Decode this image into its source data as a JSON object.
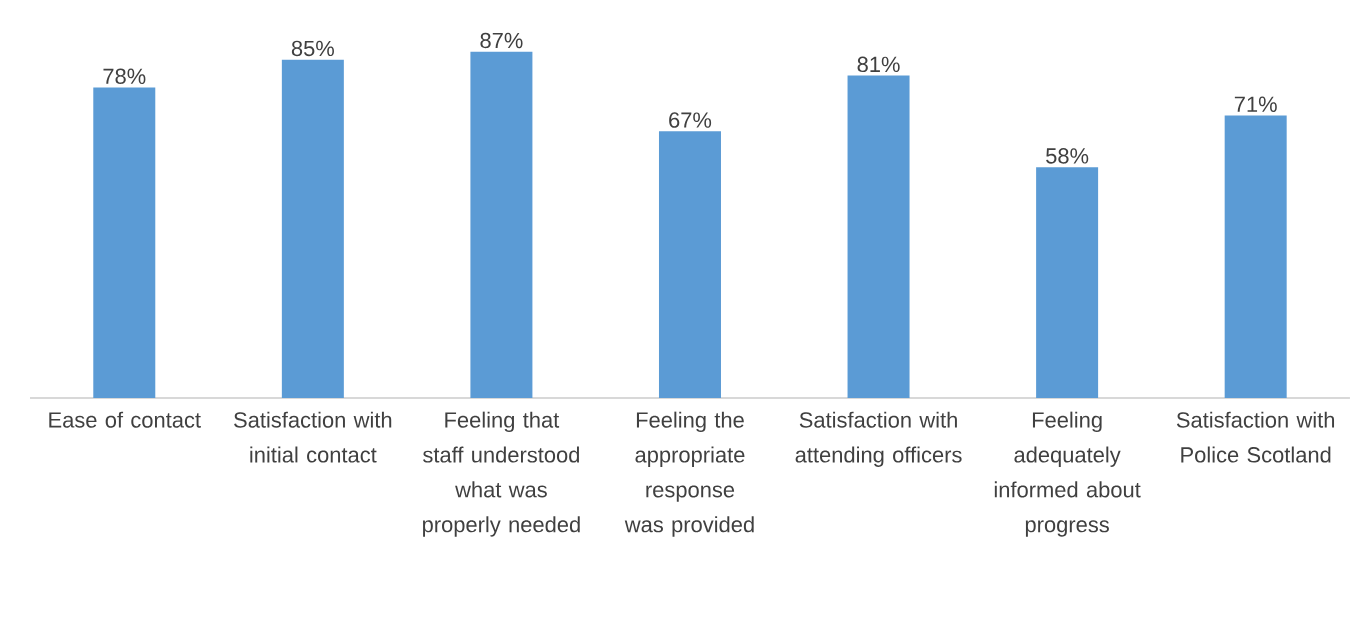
{
  "chart_data": {
    "type": "bar",
    "categories": [
      "Ease of contact",
      "Satisfaction with initial contact",
      "Feeling that staff understood what was properly needed",
      "Feeling the appropriate response was provided",
      "Satisfaction with attending officers",
      "Feeling adequately informed about progress",
      "Satisfaction with Police Scotland"
    ],
    "values": [
      78,
      85,
      87,
      67,
      81,
      58,
      71
    ],
    "value_labels": [
      "78%",
      "85%",
      "87%",
      "67%",
      "81%",
      "58%",
      "71%"
    ],
    "color": "#5b9bd5"
  }
}
